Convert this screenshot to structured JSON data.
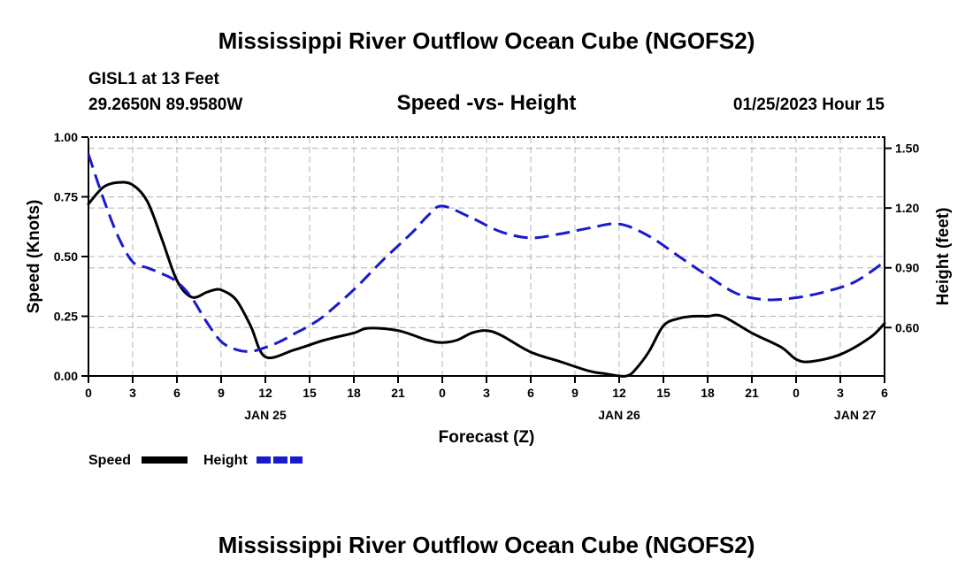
{
  "header": {
    "title_top": "Mississippi River Outflow Ocean Cube (NGOFS2)",
    "title_bottom": "Mississippi River Outflow Ocean Cube (NGOFS2)",
    "station": "GISL1 at 13 Feet",
    "coords": "29.2650N  89.9580W",
    "date": "01/25/2023 Hour 15"
  },
  "chart_data": {
    "type": "line",
    "title": "Speed -vs- Height",
    "xlabel": "Forecast (Z)",
    "ylabel_left": "Speed (Knots)",
    "ylabel_right": "Height (feet)",
    "x_range_hours": [
      0,
      54
    ],
    "x_ticks": [
      {
        "h": 0,
        "label": "0"
      },
      {
        "h": 3,
        "label": "3"
      },
      {
        "h": 6,
        "label": "6"
      },
      {
        "h": 9,
        "label": "9"
      },
      {
        "h": 12,
        "label": "12"
      },
      {
        "h": 15,
        "label": "15"
      },
      {
        "h": 18,
        "label": "18"
      },
      {
        "h": 21,
        "label": "21"
      },
      {
        "h": 24,
        "label": "0"
      },
      {
        "h": 27,
        "label": "3"
      },
      {
        "h": 30,
        "label": "6"
      },
      {
        "h": 33,
        "label": "9"
      },
      {
        "h": 36,
        "label": "12"
      },
      {
        "h": 39,
        "label": "15"
      },
      {
        "h": 42,
        "label": "18"
      },
      {
        "h": 45,
        "label": "21"
      },
      {
        "h": 48,
        "label": "0"
      },
      {
        "h": 51,
        "label": "3"
      },
      {
        "h": 54,
        "label": "6"
      }
    ],
    "date_labels": [
      {
        "h": 12,
        "label": "JAN 25"
      },
      {
        "h": 36,
        "label": "JAN 26"
      },
      {
        "h": 52,
        "label": "JAN 27"
      }
    ],
    "y_left_range": [
      0,
      1
    ],
    "y_left_ticks": [
      {
        "v": 0,
        "label": "0.00"
      },
      {
        "v": 0.25,
        "label": "0.25"
      },
      {
        "v": 0.5,
        "label": "0.50"
      },
      {
        "v": 0.75,
        "label": "0.75"
      },
      {
        "v": 1.0,
        "label": "1.00"
      }
    ],
    "y_right_range": [
      0.357,
      1.556
    ],
    "y_right_ticks": [
      {
        "v": 0.6,
        "label": "0.60"
      },
      {
        "v": 0.9,
        "label": "0.90"
      },
      {
        "v": 1.2,
        "label": "1.20"
      },
      {
        "v": 1.5,
        "label": "1.50"
      }
    ],
    "grid": true,
    "series": [
      {
        "name": "Speed",
        "axis": "left",
        "color": "#000000",
        "style": "solid",
        "x": [
          0,
          1,
          2,
          3,
          4,
          5,
          6,
          7,
          8,
          8.5,
          9,
          10,
          11,
          12,
          14,
          16,
          18,
          19,
          21,
          23,
          24,
          25,
          26,
          27,
          28,
          30,
          32,
          34,
          35,
          36,
          36.5,
          37,
          38,
          39,
          40,
          41,
          42,
          43,
          45,
          47,
          48,
          49,
          51,
          53,
          54
        ],
        "values": [
          0.72,
          0.79,
          0.81,
          0.8,
          0.73,
          0.57,
          0.4,
          0.33,
          0.35,
          0.36,
          0.36,
          0.32,
          0.21,
          0.08,
          0.11,
          0.15,
          0.18,
          0.2,
          0.19,
          0.15,
          0.14,
          0.15,
          0.18,
          0.19,
          0.17,
          0.1,
          0.06,
          0.02,
          0.01,
          0.0,
          0.0,
          0.02,
          0.1,
          0.21,
          0.24,
          0.25,
          0.25,
          0.25,
          0.18,
          0.12,
          0.07,
          0.06,
          0.09,
          0.16,
          0.22
        ]
      },
      {
        "name": "Height",
        "axis": "right",
        "color": "#1a1acc",
        "style": "dashed",
        "x": [
          0,
          1,
          2,
          3,
          4,
          5,
          6,
          7,
          8,
          9,
          10,
          11,
          12,
          13,
          14,
          15,
          16,
          18,
          20,
          22,
          23,
          24,
          26,
          28,
          30,
          32,
          34,
          36,
          38,
          40,
          42,
          44,
          46,
          48,
          50,
          52,
          54
        ],
        "values": [
          1.47,
          1.25,
          1.06,
          0.93,
          0.9,
          0.87,
          0.83,
          0.75,
          0.63,
          0.53,
          0.49,
          0.48,
          0.5,
          0.53,
          0.57,
          0.61,
          0.66,
          0.79,
          0.94,
          1.08,
          1.16,
          1.21,
          1.15,
          1.08,
          1.05,
          1.07,
          1.1,
          1.12,
          1.06,
          0.96,
          0.86,
          0.77,
          0.74,
          0.75,
          0.78,
          0.83,
          0.93
        ]
      }
    ],
    "legend": [
      {
        "label": "Speed",
        "color": "#000000",
        "style": "solid"
      },
      {
        "label": "Height",
        "color": "#1a1acc",
        "style": "dashed"
      }
    ]
  }
}
